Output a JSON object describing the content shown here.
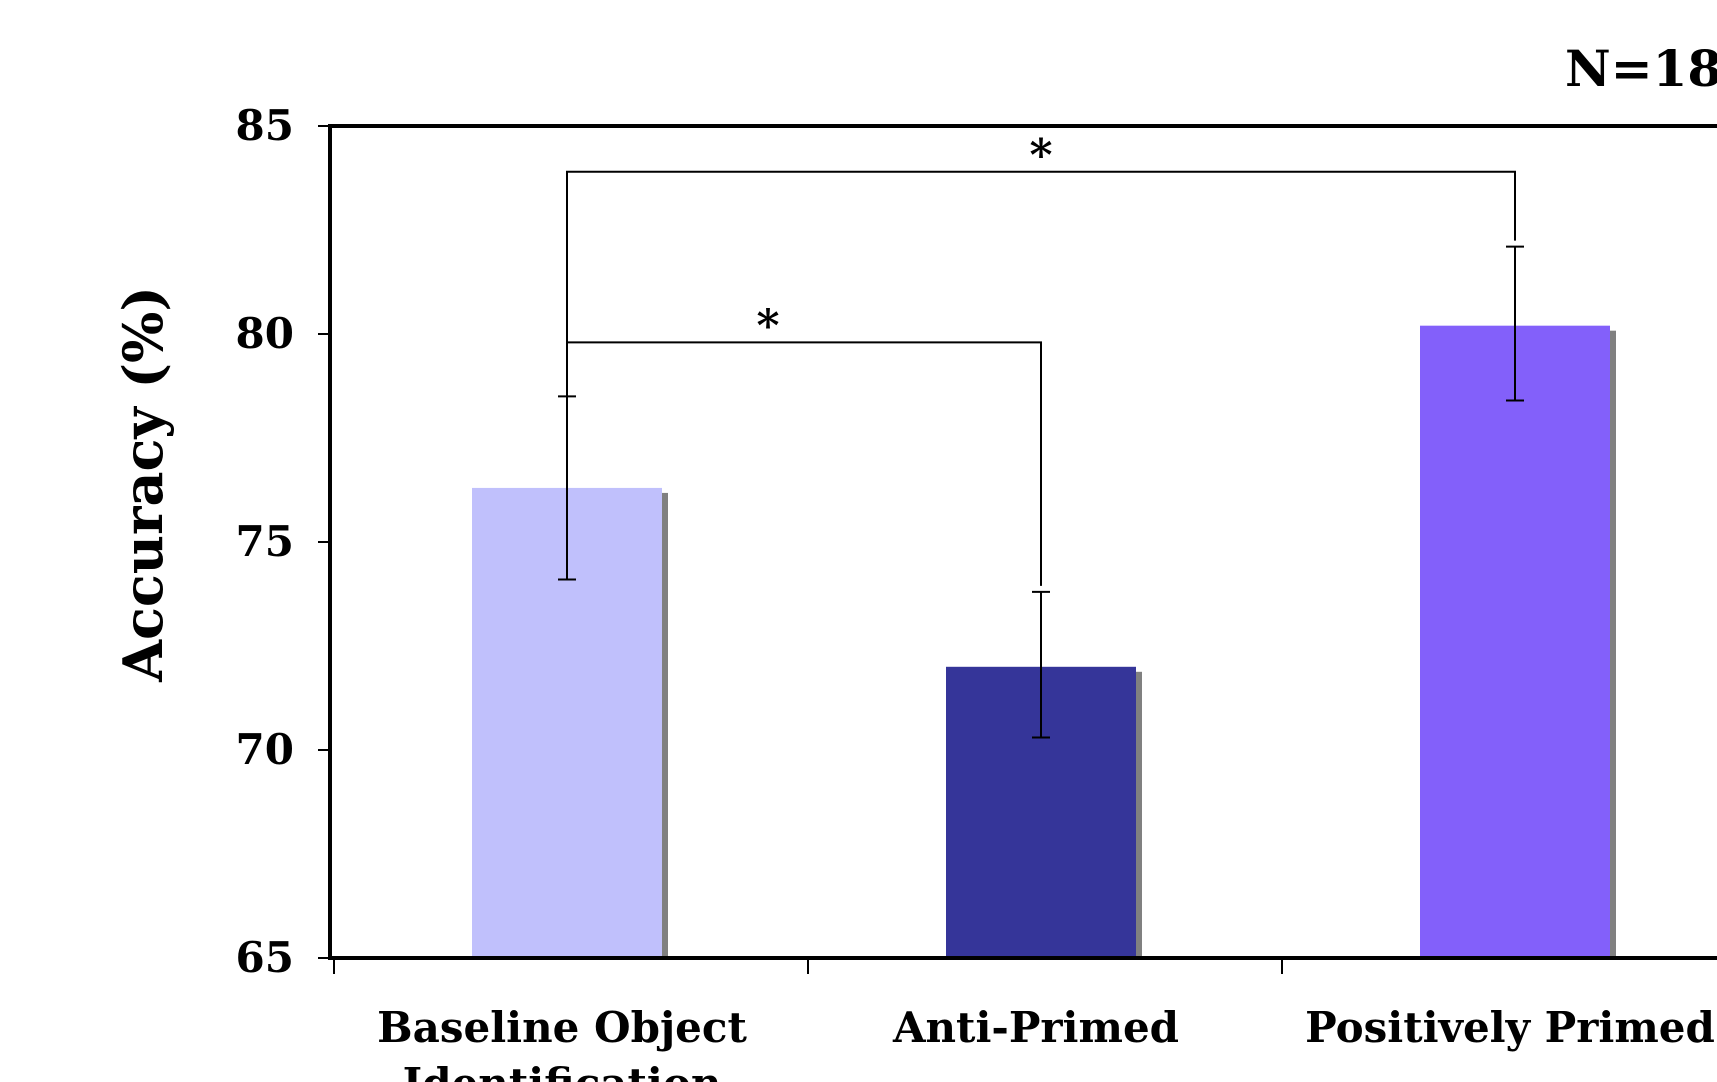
{
  "chart_data": {
    "type": "bar",
    "title": "",
    "annotation": "N=18",
    "xlabel": "",
    "ylabel": "Accuracy (%)",
    "ylim": [
      65,
      85
    ],
    "yticks": [
      "65",
      "70",
      "75",
      "80",
      "85"
    ],
    "grid": false,
    "categories": [
      [
        "Baseline Object",
        "Identification"
      ],
      [
        "Anti-Primed"
      ],
      [
        "Positively Primed"
      ]
    ],
    "values": [
      76.3,
      72.0,
      80.2
    ],
    "error_low": [
      74.1,
      70.3,
      78.4
    ],
    "error_high": [
      78.5,
      73.8,
      82.1
    ],
    "colors": [
      "#c0c0fc",
      "#353599",
      "#8360fa"
    ],
    "significance": [
      {
        "from": 0,
        "to": 2,
        "label": "*",
        "y": 83.9
      },
      {
        "from": 0,
        "to": 1,
        "label": "*",
        "y": 79.8
      }
    ]
  }
}
